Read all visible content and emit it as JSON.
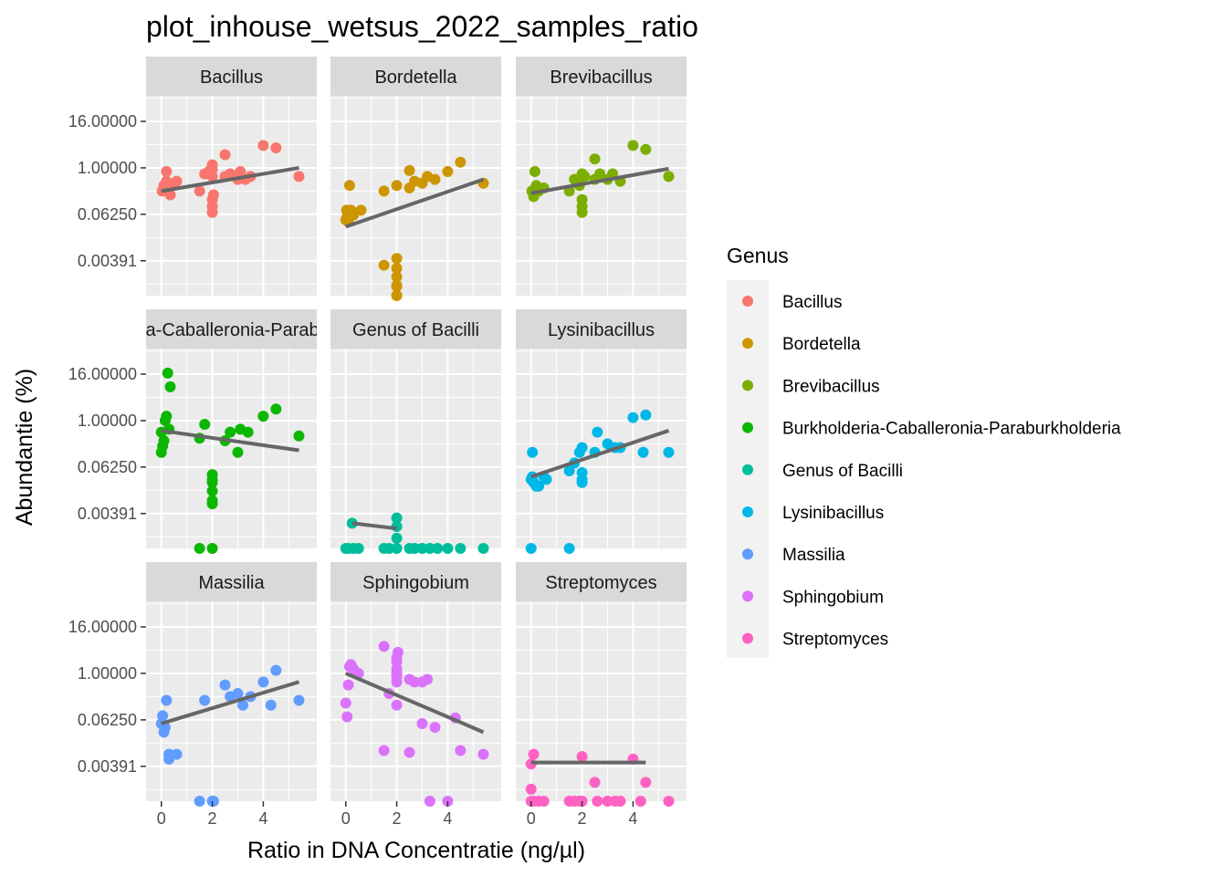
{
  "title": "plot_inhouse_wetsus_2022_samples_ratio",
  "xlabel": "Ratio in DNA Concentratie (ng/µl)",
  "ylabel": "Abundantie (%)",
  "chart_data": {
    "type": "scatter",
    "title": "plot_inhouse_wetsus_2022_samples_ratio",
    "xlabel": "Ratio in DNA Concentratie (ng/µl)",
    "ylabel": "Abundantie (%)",
    "x_scale": "linear",
    "y_scale": "log2",
    "xlim": [
      -0.6,
      6.1
    ],
    "ylim_log2": [
      -11.0,
      6.2
    ],
    "x_ticks": [
      0,
      2,
      4
    ],
    "x_tick_labels": [
      "0",
      "2",
      "4"
    ],
    "y_ticks": [
      16.0,
      1.0,
      0.0625,
      0.00391
    ],
    "y_tick_labels": [
      "16.00000",
      "1.00000",
      "0.06250",
      "0.00391"
    ],
    "grid": true,
    "facet_layout": "3x3, shared axes",
    "legend": {
      "title": "Genus",
      "position": "right",
      "entries": [
        {
          "label": "Bacillus",
          "color": "#F8766D"
        },
        {
          "label": "Bordetella",
          "color": "#CD9600"
        },
        {
          "label": "Brevibacillus",
          "color": "#7CAE00"
        },
        {
          "label": "Burkholderia-Caballeronia-Paraburkholderia",
          "color": "#0CB702"
        },
        {
          "label": "Genus of Bacilli",
          "color": "#00BE9B"
        },
        {
          "label": "Lysinibacillus",
          "color": "#00B8E7"
        },
        {
          "label": "Massilia",
          "color": "#619CFF"
        },
        {
          "label": "Sphingobium",
          "color": "#DB72FB"
        },
        {
          "label": "Streptomyces",
          "color": "#FF61C3"
        }
      ]
    },
    "trend_line_color": "#666666",
    "panels": [
      {
        "strip": "Bacillus",
        "color": "#F8766D",
        "points": [
          [
            0.03,
            0.25
          ],
          [
            0.1,
            0.35
          ],
          [
            0.2,
            0.45
          ],
          [
            0.35,
            0.2
          ],
          [
            0.4,
            0.35
          ],
          [
            0.6,
            0.45
          ],
          [
            0.2,
            0.8
          ],
          [
            1.5,
            0.25
          ],
          [
            1.7,
            0.7
          ],
          [
            1.9,
            0.85
          ],
          [
            2.0,
            0.15
          ],
          [
            2.0,
            0.1
          ],
          [
            2.0,
            0.07
          ],
          [
            2.0,
            0.9
          ],
          [
            2.0,
            0.6
          ],
          [
            2.05,
            0.2
          ],
          [
            2.0,
            1.2
          ],
          [
            2.5,
            0.6
          ],
          [
            2.7,
            0.7
          ],
          [
            3.0,
            0.5
          ],
          [
            3.1,
            0.8
          ],
          [
            3.3,
            0.5
          ],
          [
            3.5,
            0.6
          ],
          [
            2.5,
            2.2
          ],
          [
            4.0,
            3.8
          ],
          [
            4.5,
            3.3
          ],
          [
            5.4,
            0.6
          ]
        ],
        "trend": [
          [
            0.0,
            0.25
          ],
          [
            5.4,
            1.0
          ]
        ]
      },
      {
        "strip": "Bordetella",
        "color": "#CD9600",
        "points": [
          [
            0.0,
            0.045
          ],
          [
            0.03,
            0.08
          ],
          [
            0.06,
            0.055
          ],
          [
            0.1,
            0.04
          ],
          [
            0.15,
            0.35
          ],
          [
            0.2,
            0.08
          ],
          [
            0.3,
            0.06
          ],
          [
            0.6,
            0.08
          ],
          [
            1.5,
            0.25
          ],
          [
            2.0,
            0.35
          ],
          [
            1.5,
            0.003
          ],
          [
            2.0,
            0.0025
          ],
          [
            2.0,
            0.0015
          ],
          [
            2.0,
            0.0009
          ],
          [
            2.0,
            0.00085
          ],
          [
            2.0,
            0.0045
          ],
          [
            2.0,
            0.0005
          ],
          [
            2.5,
            0.3
          ],
          [
            2.7,
            0.45
          ],
          [
            2.5,
            0.85
          ],
          [
            3.0,
            0.4
          ],
          [
            3.2,
            0.6
          ],
          [
            3.5,
            0.5
          ],
          [
            4.0,
            0.8
          ],
          [
            4.5,
            1.4
          ],
          [
            5.4,
            0.4
          ],
          [
            2.0,
            0.00045
          ]
        ],
        "trend": [
          [
            0.0,
            0.03
          ],
          [
            5.4,
            0.5
          ]
        ]
      },
      {
        "strip": "Brevibacillus",
        "color": "#7CAE00",
        "points": [
          [
            0.03,
            0.25
          ],
          [
            0.1,
            0.18
          ],
          [
            0.15,
            0.8
          ],
          [
            0.2,
            0.35
          ],
          [
            0.3,
            0.25
          ],
          [
            0.5,
            0.3
          ],
          [
            1.5,
            0.25
          ],
          [
            1.7,
            0.5
          ],
          [
            1.9,
            0.35
          ],
          [
            2.0,
            0.15
          ],
          [
            2.0,
            0.1
          ],
          [
            2.0,
            0.07
          ],
          [
            2.0,
            0.7
          ],
          [
            2.1,
            0.6
          ],
          [
            2.5,
            0.5
          ],
          [
            2.7,
            0.7
          ],
          [
            3.0,
            0.5
          ],
          [
            3.2,
            0.7
          ],
          [
            3.5,
            0.45
          ],
          [
            2.5,
            1.7
          ],
          [
            4.0,
            3.8
          ],
          [
            4.5,
            3.0
          ],
          [
            5.4,
            0.6
          ]
        ],
        "trend": [
          [
            0.0,
            0.22
          ],
          [
            5.4,
            0.95
          ]
        ]
      },
      {
        "strip": "Burkholderia-Caballeronia-Paraburkholderia",
        "color": "#0CB702",
        "points": [
          [
            0.0,
            0.5
          ],
          [
            0.0,
            0.15
          ],
          [
            0.05,
            0.22
          ],
          [
            0.1,
            0.3
          ],
          [
            0.15,
            1.0
          ],
          [
            0.2,
            1.3
          ],
          [
            0.3,
            0.6
          ],
          [
            0.25,
            17.0
          ],
          [
            0.35,
            7.5
          ],
          [
            1.5,
            0.35
          ],
          [
            1.7,
            0.8
          ],
          [
            2.0,
            0.025
          ],
          [
            2.0,
            0.03
          ],
          [
            2.0,
            0.04
          ],
          [
            2.0,
            0.015
          ],
          [
            2.0,
            0.007
          ],
          [
            2.0,
            0.0085
          ],
          [
            1.5,
            0.00035
          ],
          [
            2.0,
            0.00035
          ],
          [
            2.5,
            0.3
          ],
          [
            2.7,
            0.5
          ],
          [
            3.0,
            0.15
          ],
          [
            3.1,
            0.6
          ],
          [
            3.4,
            0.5
          ],
          [
            4.0,
            1.3
          ],
          [
            4.5,
            2.0
          ],
          [
            5.4,
            0.4
          ]
        ],
        "trend": [
          [
            0.0,
            0.55
          ],
          [
            5.4,
            0.17
          ]
        ]
      },
      {
        "strip": "Genus of Bacilli",
        "color": "#00BE9B",
        "points": [
          [
            0.0,
            0.00035
          ],
          [
            0.1,
            0.00035
          ],
          [
            0.3,
            0.00035
          ],
          [
            0.5,
            0.00035
          ],
          [
            1.5,
            0.00035
          ],
          [
            1.7,
            0.00035
          ],
          [
            2.0,
            0.00035
          ],
          [
            2.5,
            0.00035
          ],
          [
            2.7,
            0.00035
          ],
          [
            3.0,
            0.00035
          ],
          [
            3.3,
            0.00035
          ],
          [
            3.6,
            0.00035
          ],
          [
            4.0,
            0.00035
          ],
          [
            4.5,
            0.00035
          ],
          [
            5.4,
            0.00035
          ],
          [
            0.25,
            0.0022
          ],
          [
            2.0,
            0.003
          ],
          [
            2.0,
            0.0018
          ],
          [
            2.0,
            0.0009
          ]
        ],
        "trend": [
          [
            0.25,
            0.0022
          ],
          [
            2.0,
            0.0016
          ]
        ]
      },
      {
        "strip": "Lysinibacillus",
        "color": "#00B8E7",
        "points": [
          [
            0.0,
            0.03
          ],
          [
            0.05,
            0.035
          ],
          [
            0.1,
            0.025
          ],
          [
            0.2,
            0.02
          ],
          [
            0.3,
            0.02
          ],
          [
            0.5,
            0.035
          ],
          [
            0.6,
            0.03
          ],
          [
            0.05,
            0.15
          ],
          [
            1.5,
            0.05
          ],
          [
            1.7,
            0.08
          ],
          [
            1.9,
            0.15
          ],
          [
            2.0,
            0.03
          ],
          [
            2.0,
            0.025
          ],
          [
            2.0,
            0.045
          ],
          [
            2.0,
            0.2
          ],
          [
            2.5,
            0.15
          ],
          [
            2.6,
            0.5
          ],
          [
            3.0,
            0.25
          ],
          [
            3.3,
            0.2
          ],
          [
            3.5,
            0.2
          ],
          [
            4.0,
            1.2
          ],
          [
            4.5,
            1.4
          ],
          [
            4.4,
            0.15
          ],
          [
            5.4,
            0.15
          ],
          [
            0.0,
            0.00035
          ],
          [
            1.5,
            0.00035
          ]
        ],
        "trend": [
          [
            0.0,
            0.035
          ],
          [
            5.4,
            0.55
          ]
        ]
      },
      {
        "strip": "Massilia",
        "color": "#619CFF",
        "points": [
          [
            0.0,
            0.05
          ],
          [
            0.05,
            0.08
          ],
          [
            0.1,
            0.03
          ],
          [
            0.15,
            0.04
          ],
          [
            0.2,
            0.2
          ],
          [
            0.3,
            0.008
          ],
          [
            0.3,
            0.006
          ],
          [
            0.6,
            0.008
          ],
          [
            1.5,
            0.00035
          ],
          [
            1.7,
            0.2
          ],
          [
            2.0,
            0.00035
          ],
          [
            2.05,
            0.00035
          ],
          [
            2.5,
            0.5
          ],
          [
            2.7,
            0.25
          ],
          [
            3.0,
            0.3
          ],
          [
            3.2,
            0.15
          ],
          [
            3.5,
            0.25
          ],
          [
            4.0,
            0.6
          ],
          [
            4.3,
            0.15
          ],
          [
            4.5,
            1.2
          ],
          [
            5.4,
            0.2
          ]
        ],
        "trend": [
          [
            0.0,
            0.05
          ],
          [
            5.4,
            0.6
          ]
        ]
      },
      {
        "strip": "Sphingobium",
        "color": "#DB72FB",
        "points": [
          [
            0.0,
            0.17
          ],
          [
            0.05,
            0.075
          ],
          [
            0.1,
            0.5
          ],
          [
            0.15,
            1.5
          ],
          [
            0.2,
            1.7
          ],
          [
            0.3,
            1.3
          ],
          [
            0.5,
            1.0
          ],
          [
            1.5,
            5.0
          ],
          [
            1.7,
            0.3
          ],
          [
            1.5,
            0.01
          ],
          [
            2.0,
            2.5
          ],
          [
            2.0,
            2.0
          ],
          [
            2.0,
            1.3
          ],
          [
            2.0,
            1.0
          ],
          [
            2.0,
            0.8
          ],
          [
            2.0,
            0.6
          ],
          [
            2.0,
            0.15
          ],
          [
            2.05,
            3.5
          ],
          [
            2.5,
            0.7
          ],
          [
            2.7,
            0.6
          ],
          [
            3.0,
            0.6
          ],
          [
            3.2,
            0.7
          ],
          [
            2.5,
            0.009
          ],
          [
            3.0,
            0.05
          ],
          [
            3.5,
            0.04
          ],
          [
            4.3,
            0.07
          ],
          [
            4.5,
            0.01
          ],
          [
            5.4,
            0.008
          ],
          [
            3.3,
            0.00035
          ],
          [
            4.0,
            0.00035
          ]
        ],
        "trend": [
          [
            0.0,
            1.0
          ],
          [
            5.4,
            0.03
          ]
        ]
      },
      {
        "strip": "Streptomyces",
        "color": "#FF61C3",
        "points": [
          [
            0.0,
            0.0045
          ],
          [
            0.1,
            0.008
          ],
          [
            0.0,
            0.001
          ],
          [
            0.0,
            0.00035
          ],
          [
            0.1,
            0.00035
          ],
          [
            0.3,
            0.00035
          ],
          [
            0.5,
            0.00035
          ],
          [
            1.5,
            0.00035
          ],
          [
            1.7,
            0.00035
          ],
          [
            1.9,
            0.00035
          ],
          [
            2.0,
            0.007
          ],
          [
            2.0,
            0.00035
          ],
          [
            2.5,
            0.0015
          ],
          [
            2.6,
            0.00035
          ],
          [
            3.0,
            0.00035
          ],
          [
            3.3,
            0.00035
          ],
          [
            3.5,
            0.00035
          ],
          [
            4.0,
            0.006
          ],
          [
            4.3,
            0.00035
          ],
          [
            4.5,
            0.0015
          ],
          [
            5.4,
            0.00035
          ]
        ],
        "trend": [
          [
            0.0,
            0.0049
          ],
          [
            4.5,
            0.0049
          ]
        ]
      }
    ]
  }
}
